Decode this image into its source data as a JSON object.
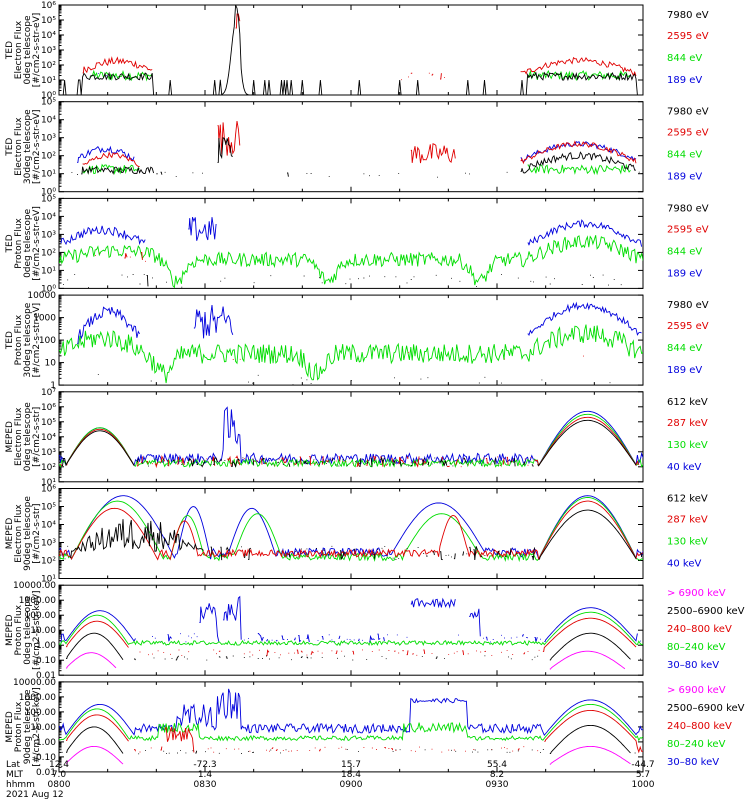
{
  "colors": {
    "black": "#000000",
    "red": "#e00000",
    "green": "#00dd00",
    "blue": "#0000dd",
    "magenta": "#ff00ff"
  },
  "chart_data": [
    {
      "type": "line",
      "ylabel": [
        "TED",
        "Electron Flux",
        "0deg telescope",
        "[#/cm2-s-str-eV]"
      ],
      "yscale": "log",
      "ylim_exp": [
        0,
        6
      ],
      "yticks": [
        "10⁰",
        "10¹",
        "10²",
        "10³",
        "10⁴",
        "10⁵",
        "10⁶"
      ],
      "series": [
        {
          "name": "7980 eV",
          "color": "black"
        },
        {
          "name": "2595 eV",
          "color": "red"
        },
        {
          "name": "844 eV",
          "color": "green"
        },
        {
          "name": "189 eV",
          "color": "blue"
        }
      ]
    },
    {
      "type": "line",
      "ylabel": [
        "TED",
        "Electron Flux",
        "30deg telescope",
        "[#/cm2-s-str-eV]"
      ],
      "yscale": "log",
      "ylim_exp": [
        0,
        5
      ],
      "yticks": [
        "10⁰",
        "10¹",
        "10²",
        "10³",
        "10⁴",
        "10⁵"
      ],
      "series": [
        {
          "name": "7980 eV",
          "color": "black"
        },
        {
          "name": "2595 eV",
          "color": "red"
        },
        {
          "name": "844 eV",
          "color": "green"
        },
        {
          "name": "189 eV",
          "color": "blue"
        }
      ]
    },
    {
      "type": "line",
      "ylabel": [
        "TED",
        "Proton Flux",
        "0deg telescope",
        "[#/cm2-s-str-eV]"
      ],
      "yscale": "log",
      "ylim_exp": [
        0,
        5
      ],
      "yticks": [
        "10⁰",
        "10¹",
        "10²",
        "10³",
        "10⁴",
        "10⁵"
      ],
      "series": [
        {
          "name": "7980 eV",
          "color": "black"
        },
        {
          "name": "2595 eV",
          "color": "red"
        },
        {
          "name": "844 eV",
          "color": "green"
        },
        {
          "name": "189 eV",
          "color": "blue"
        }
      ]
    },
    {
      "type": "line",
      "ylabel": [
        "TED",
        "Proton Flux",
        "30deg telescope",
        "[#/cm2-s-str-eV]"
      ],
      "yscale": "log",
      "ylim_exp": [
        0,
        4
      ],
      "yticks": [
        "1",
        "10",
        "100",
        "1000",
        "10000"
      ],
      "series": [
        {
          "name": "7980 eV",
          "color": "black"
        },
        {
          "name": "2595 eV",
          "color": "red"
        },
        {
          "name": "844 eV",
          "color": "green"
        },
        {
          "name": "189 eV",
          "color": "blue"
        }
      ]
    },
    {
      "type": "line",
      "ylabel": [
        "MEPED",
        "Electron Flux",
        "0deg telescope",
        "[#/cm2-s-str]"
      ],
      "yscale": "log",
      "ylim_exp": [
        1,
        7
      ],
      "yticks": [
        "10¹",
        "10²",
        "10³",
        "10⁴",
        "10⁵",
        "10⁶",
        "10⁷"
      ],
      "series": [
        {
          "name": "612 keV",
          "color": "black"
        },
        {
          "name": "287 keV",
          "color": "red"
        },
        {
          "name": "130 keV",
          "color": "green"
        },
        {
          "name": "40 keV",
          "color": "blue"
        }
      ]
    },
    {
      "type": "line",
      "ylabel": [
        "MEPED",
        "Electron Flux",
        "90deg telescope",
        "[#/cm2-s-str]"
      ],
      "yscale": "log",
      "ylim_exp": [
        1,
        6
      ],
      "yticks": [
        "10¹",
        "10²",
        "10³",
        "10⁴",
        "10⁵",
        "10⁶"
      ],
      "series": [
        {
          "name": "612 keV",
          "color": "black"
        },
        {
          "name": "287 keV",
          "color": "red"
        },
        {
          "name": "130 keV",
          "color": "green"
        },
        {
          "name": "40 keV",
          "color": "blue"
        }
      ]
    },
    {
      "type": "line",
      "ylabel": [
        "MEPED",
        "Proton Flux",
        "0deg telescope",
        "[#/cm2-s-str-keV]"
      ],
      "yscale": "log",
      "ylim_exp": [
        -2,
        4
      ],
      "yticks": [
        "0.01",
        "0.10",
        "1.00",
        "10.00",
        "100.00",
        "1000.00",
        "10000.00"
      ],
      "series": [
        {
          "name": "> 6900 keV",
          "color": "magenta"
        },
        {
          "name": "2500–6900 keV",
          "color": "black"
        },
        {
          "name": "240–800 keV",
          "color": "red"
        },
        {
          "name": "80–240 keV",
          "color": "green"
        },
        {
          "name": "30–80 keV",
          "color": "blue"
        }
      ]
    },
    {
      "type": "line",
      "ylabel": [
        "MEPED",
        "Proton Flux",
        "90deg telescope",
        "[#/cm2-s-str-keV]"
      ],
      "yscale": "log",
      "ylim_exp": [
        -2,
        4
      ],
      "yticks": [
        "0.01",
        "0.10",
        "1.00",
        "10.00",
        "100.00",
        "1000.00",
        "10000.00"
      ],
      "series": [
        {
          "name": "> 6900 keV",
          "color": "magenta"
        },
        {
          "name": "2500–6900 keV",
          "color": "black"
        },
        {
          "name": "240–800 keV",
          "color": "red"
        },
        {
          "name": "80–240 keV",
          "color": "green"
        },
        {
          "name": "30–80 keV",
          "color": "blue"
        }
      ]
    }
  ],
  "xaxis": {
    "row_labels": [
      "Lat",
      "MLT",
      "hhmm"
    ],
    "date": "2021 Aug 12",
    "ticks": [
      {
        "lat": "12.4",
        "mlt": "7.0",
        "hhmm": "0800"
      },
      {
        "lat": "-72.3",
        "mlt": "1.4",
        "hhmm": "0830"
      },
      {
        "lat": "15.7",
        "mlt": "18.4",
        "hhmm": "0900"
      },
      {
        "lat": "55.4",
        "mlt": "8.2",
        "hhmm": "0930"
      },
      {
        "lat": "-44.7",
        "mlt": "5.7",
        "hhmm": "1000"
      }
    ]
  }
}
